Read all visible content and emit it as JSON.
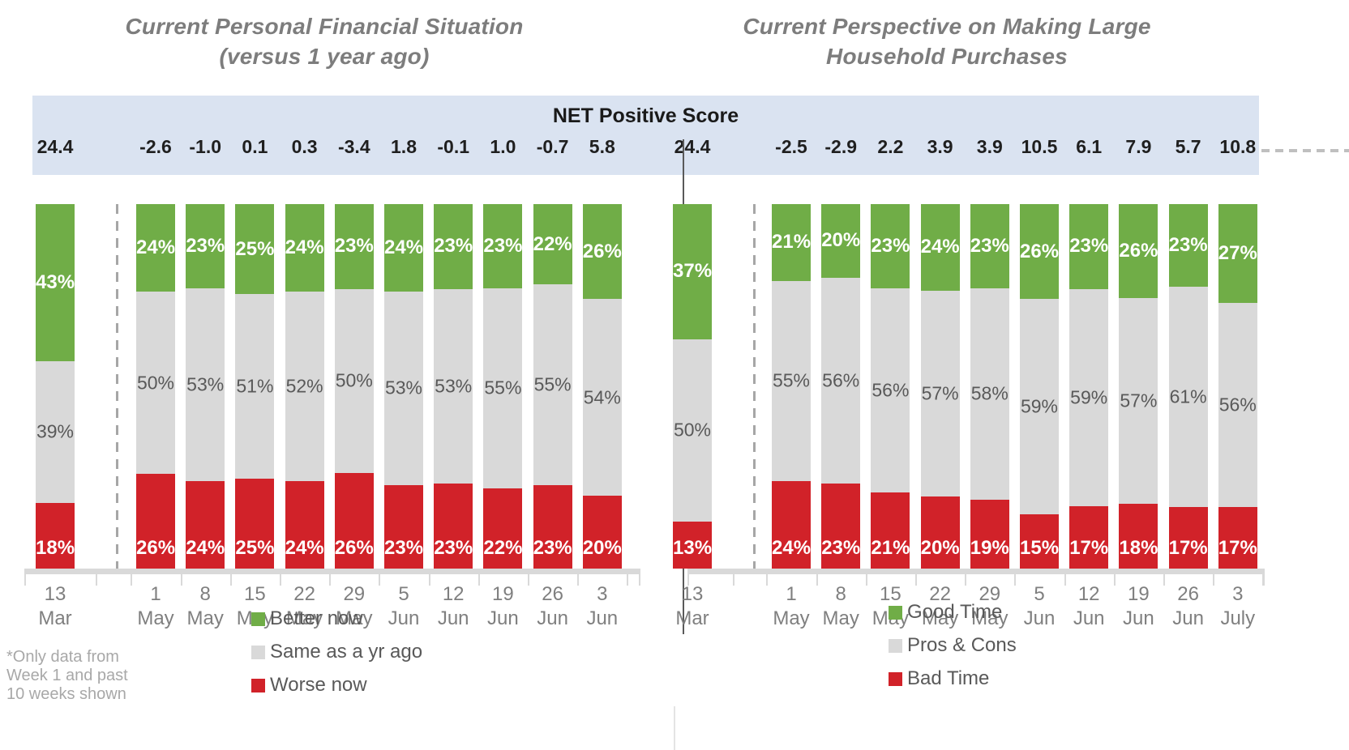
{
  "colors": {
    "green": "#70ad47",
    "gray": "#d9d9d9",
    "red": "#d12229",
    "band_bg": "#dae3f1",
    "title_gray": "#7d7d7d"
  },
  "net_band": {
    "title": "NET Positive Score"
  },
  "footnote": {
    "lines": [
      "*Only data from",
      "Week 1 and past",
      "10 weeks shown"
    ]
  },
  "chart_data": [
    {
      "type": "bar",
      "stacked": true,
      "units": "percent",
      "ylim": [
        0,
        100
      ],
      "legend_position": "bottom",
      "title": "Current Personal Financial Situation (versus 1 year ago)",
      "title_lines": [
        "Current Personal Financial Situation",
        "(versus 1 year ago)"
      ],
      "categories": [
        {
          "day": "13",
          "month": "Mar"
        },
        {
          "day": "1",
          "month": "May"
        },
        {
          "day": "8",
          "month": "May"
        },
        {
          "day": "15",
          "month": "May"
        },
        {
          "day": "22",
          "month": "May"
        },
        {
          "day": "29",
          "month": "May"
        },
        {
          "day": "5",
          "month": "Jun"
        },
        {
          "day": "12",
          "month": "Jun"
        },
        {
          "day": "19",
          "month": "Jun"
        },
        {
          "day": "26",
          "month": "Jun"
        },
        {
          "day": "3",
          "month": "Jun"
        }
      ],
      "net_positive_scores": [
        "24.4",
        "-2.6",
        "-1.0",
        "0.1",
        "0.3",
        "-3.4",
        "1.8",
        "-0.1",
        "1.0",
        "-0.7",
        "5.8"
      ],
      "series": [
        {
          "name": "Better now",
          "color": "green",
          "values": [
            43,
            24,
            23,
            25,
            24,
            23,
            24,
            23,
            23,
            22,
            26
          ]
        },
        {
          "name": "Same as a yr ago",
          "color": "gray",
          "values": [
            39,
            50,
            53,
            51,
            52,
            50,
            53,
            53,
            55,
            55,
            54
          ]
        },
        {
          "name": "Worse now",
          "color": "red",
          "values": [
            18,
            26,
            24,
            25,
            24,
            26,
            23,
            23,
            22,
            23,
            20
          ]
        }
      ]
    },
    {
      "type": "bar",
      "stacked": true,
      "units": "percent",
      "ylim": [
        0,
        100
      ],
      "legend_position": "bottom",
      "title": "Current Perspective on Making Large Household Purchases",
      "title_lines": [
        "Current Perspective on Making Large",
        "Household Purchases"
      ],
      "categories": [
        {
          "day": "13",
          "month": "Mar"
        },
        {
          "day": "1",
          "month": "May"
        },
        {
          "day": "8",
          "month": "May"
        },
        {
          "day": "15",
          "month": "May"
        },
        {
          "day": "22",
          "month": "May"
        },
        {
          "day": "29",
          "month": "May"
        },
        {
          "day": "5",
          "month": "Jun"
        },
        {
          "day": "12",
          "month": "Jun"
        },
        {
          "day": "19",
          "month": "Jun"
        },
        {
          "day": "26",
          "month": "Jun"
        },
        {
          "day": "3",
          "month": "July"
        }
      ],
      "net_positive_scores": [
        "24.4",
        "-2.5",
        "-2.9",
        "2.2",
        "3.9",
        "3.9",
        "10.5",
        "6.1",
        "7.9",
        "5.7",
        "10.8"
      ],
      "series": [
        {
          "name": "Good Time",
          "color": "green",
          "values": [
            37,
            21,
            20,
            23,
            24,
            23,
            26,
            23,
            26,
            23,
            27
          ]
        },
        {
          "name": "Pros & Cons",
          "color": "gray",
          "values": [
            50,
            55,
            56,
            56,
            57,
            58,
            59,
            59,
            57,
            61,
            56
          ]
        },
        {
          "name": "Bad Time",
          "color": "red",
          "values": [
            13,
            24,
            23,
            21,
            20,
            19,
            15,
            17,
            18,
            17,
            17
          ]
        }
      ]
    }
  ]
}
